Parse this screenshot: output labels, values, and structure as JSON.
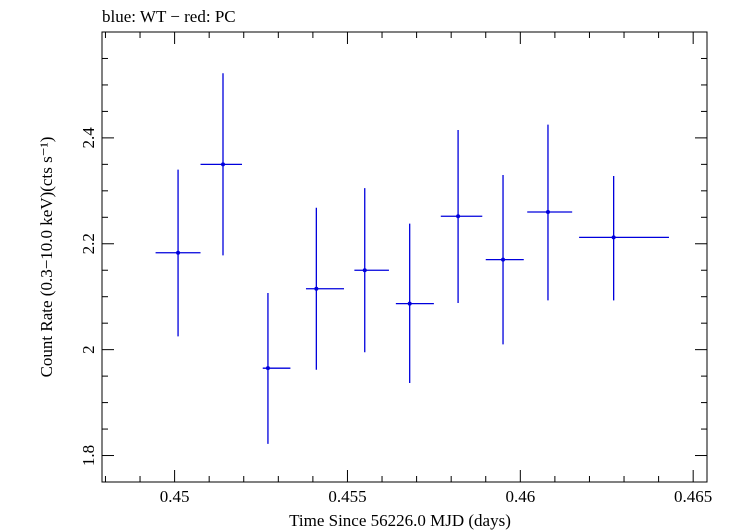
{
  "chart_data": {
    "type": "scatter",
    "title": "blue: WT − red: PC",
    "xlabel": "Time Since 56226.0 MJD (days)",
    "ylabel": "Count Rate (0.3−10.0 keV)(cts s⁻¹)",
    "xlim": [
      0.4479,
      0.4654
    ],
    "ylim": [
      1.75,
      2.6
    ],
    "xticks": [
      0.45,
      0.455,
      0.46,
      0.465
    ],
    "xtick_labels": [
      "0.45",
      "0.455",
      "0.46",
      "0.465"
    ],
    "yticks": [
      1.8,
      2.0,
      2.2,
      2.4
    ],
    "ytick_labels": [
      "1.8",
      "2",
      "2.2",
      "2.4"
    ],
    "grid": false,
    "series": [
      {
        "color": "#0000dd",
        "points": [
          {
            "x": 0.4501,
            "xlo": 0.44945,
            "xhi": 0.45075,
            "y": 2.183,
            "ylo": 2.025,
            "yhi": 2.34
          },
          {
            "x": 0.4514,
            "xlo": 0.45075,
            "xhi": 0.45195,
            "y": 2.35,
            "ylo": 2.178,
            "yhi": 2.522
          },
          {
            "x": 0.4527,
            "xlo": 0.45255,
            "xhi": 0.45335,
            "y": 1.965,
            "ylo": 1.822,
            "yhi": 2.107
          },
          {
            "x": 0.4541,
            "xlo": 0.4538,
            "xhi": 0.4549,
            "y": 2.115,
            "ylo": 1.962,
            "yhi": 2.268
          },
          {
            "x": 0.4555,
            "xlo": 0.4552,
            "xhi": 0.4562,
            "y": 2.15,
            "ylo": 1.995,
            "yhi": 2.305
          },
          {
            "x": 0.4568,
            "xlo": 0.4564,
            "xhi": 0.4575,
            "y": 2.087,
            "ylo": 1.937,
            "yhi": 2.238
          },
          {
            "x": 0.4582,
            "xlo": 0.4577,
            "xhi": 0.4589,
            "y": 2.252,
            "ylo": 2.088,
            "yhi": 2.415
          },
          {
            "x": 0.4595,
            "xlo": 0.459,
            "xhi": 0.4601,
            "y": 2.17,
            "ylo": 2.01,
            "yhi": 2.33
          },
          {
            "x": 0.4608,
            "xlo": 0.4602,
            "xhi": 0.4615,
            "y": 2.26,
            "ylo": 2.093,
            "yhi": 2.425
          },
          {
            "x": 0.4627,
            "xlo": 0.4617,
            "xhi": 0.4643,
            "y": 2.212,
            "ylo": 2.093,
            "yhi": 2.328
          }
        ]
      }
    ]
  }
}
